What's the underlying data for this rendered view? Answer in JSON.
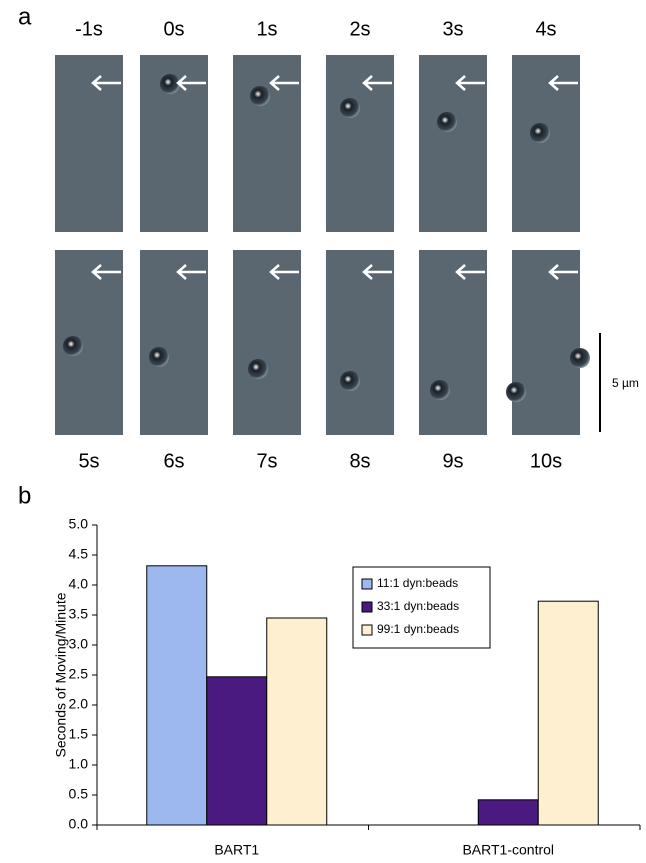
{
  "panel_a": {
    "label": "a",
    "frames": [
      "-1s",
      "0s",
      "1s",
      "2s",
      "3s",
      "4s",
      "5s",
      "6s",
      "7s",
      "8s",
      "9s",
      "10s"
    ],
    "scale_label": "5 µm"
  },
  "panel_b": {
    "label": "b"
  },
  "chart_data": {
    "type": "bar",
    "y_label": "Seconds of Moving/Minute",
    "categories": [
      "BART1",
      "BART1-control"
    ],
    "series": [
      {
        "name": "11:1 dyn:beads",
        "color": "#9db8ef",
        "values": [
          4.32,
          0
        ]
      },
      {
        "name": "33:1 dyn:beads",
        "color": "#4b1a80",
        "values": [
          2.47,
          0.42
        ]
      },
      {
        "name": "99:1 dyn:beads",
        "color": "#fdefcf",
        "values": [
          3.45,
          3.73
        ]
      }
    ],
    "ylim": [
      0,
      5
    ],
    "yticks": [
      {
        "value": 0,
        "label": "0.0"
      },
      0.5,
      {
        "value": 1,
        "label": "1.0"
      },
      1.5,
      {
        "value": 2,
        "label": "2.0"
      },
      2.5,
      {
        "value": 3,
        "label": "3.0"
      },
      3.5,
      {
        "value": 4,
        "label": "4.0"
      },
      4.5,
      {
        "value": 5,
        "label": "5.0"
      }
    ]
  }
}
